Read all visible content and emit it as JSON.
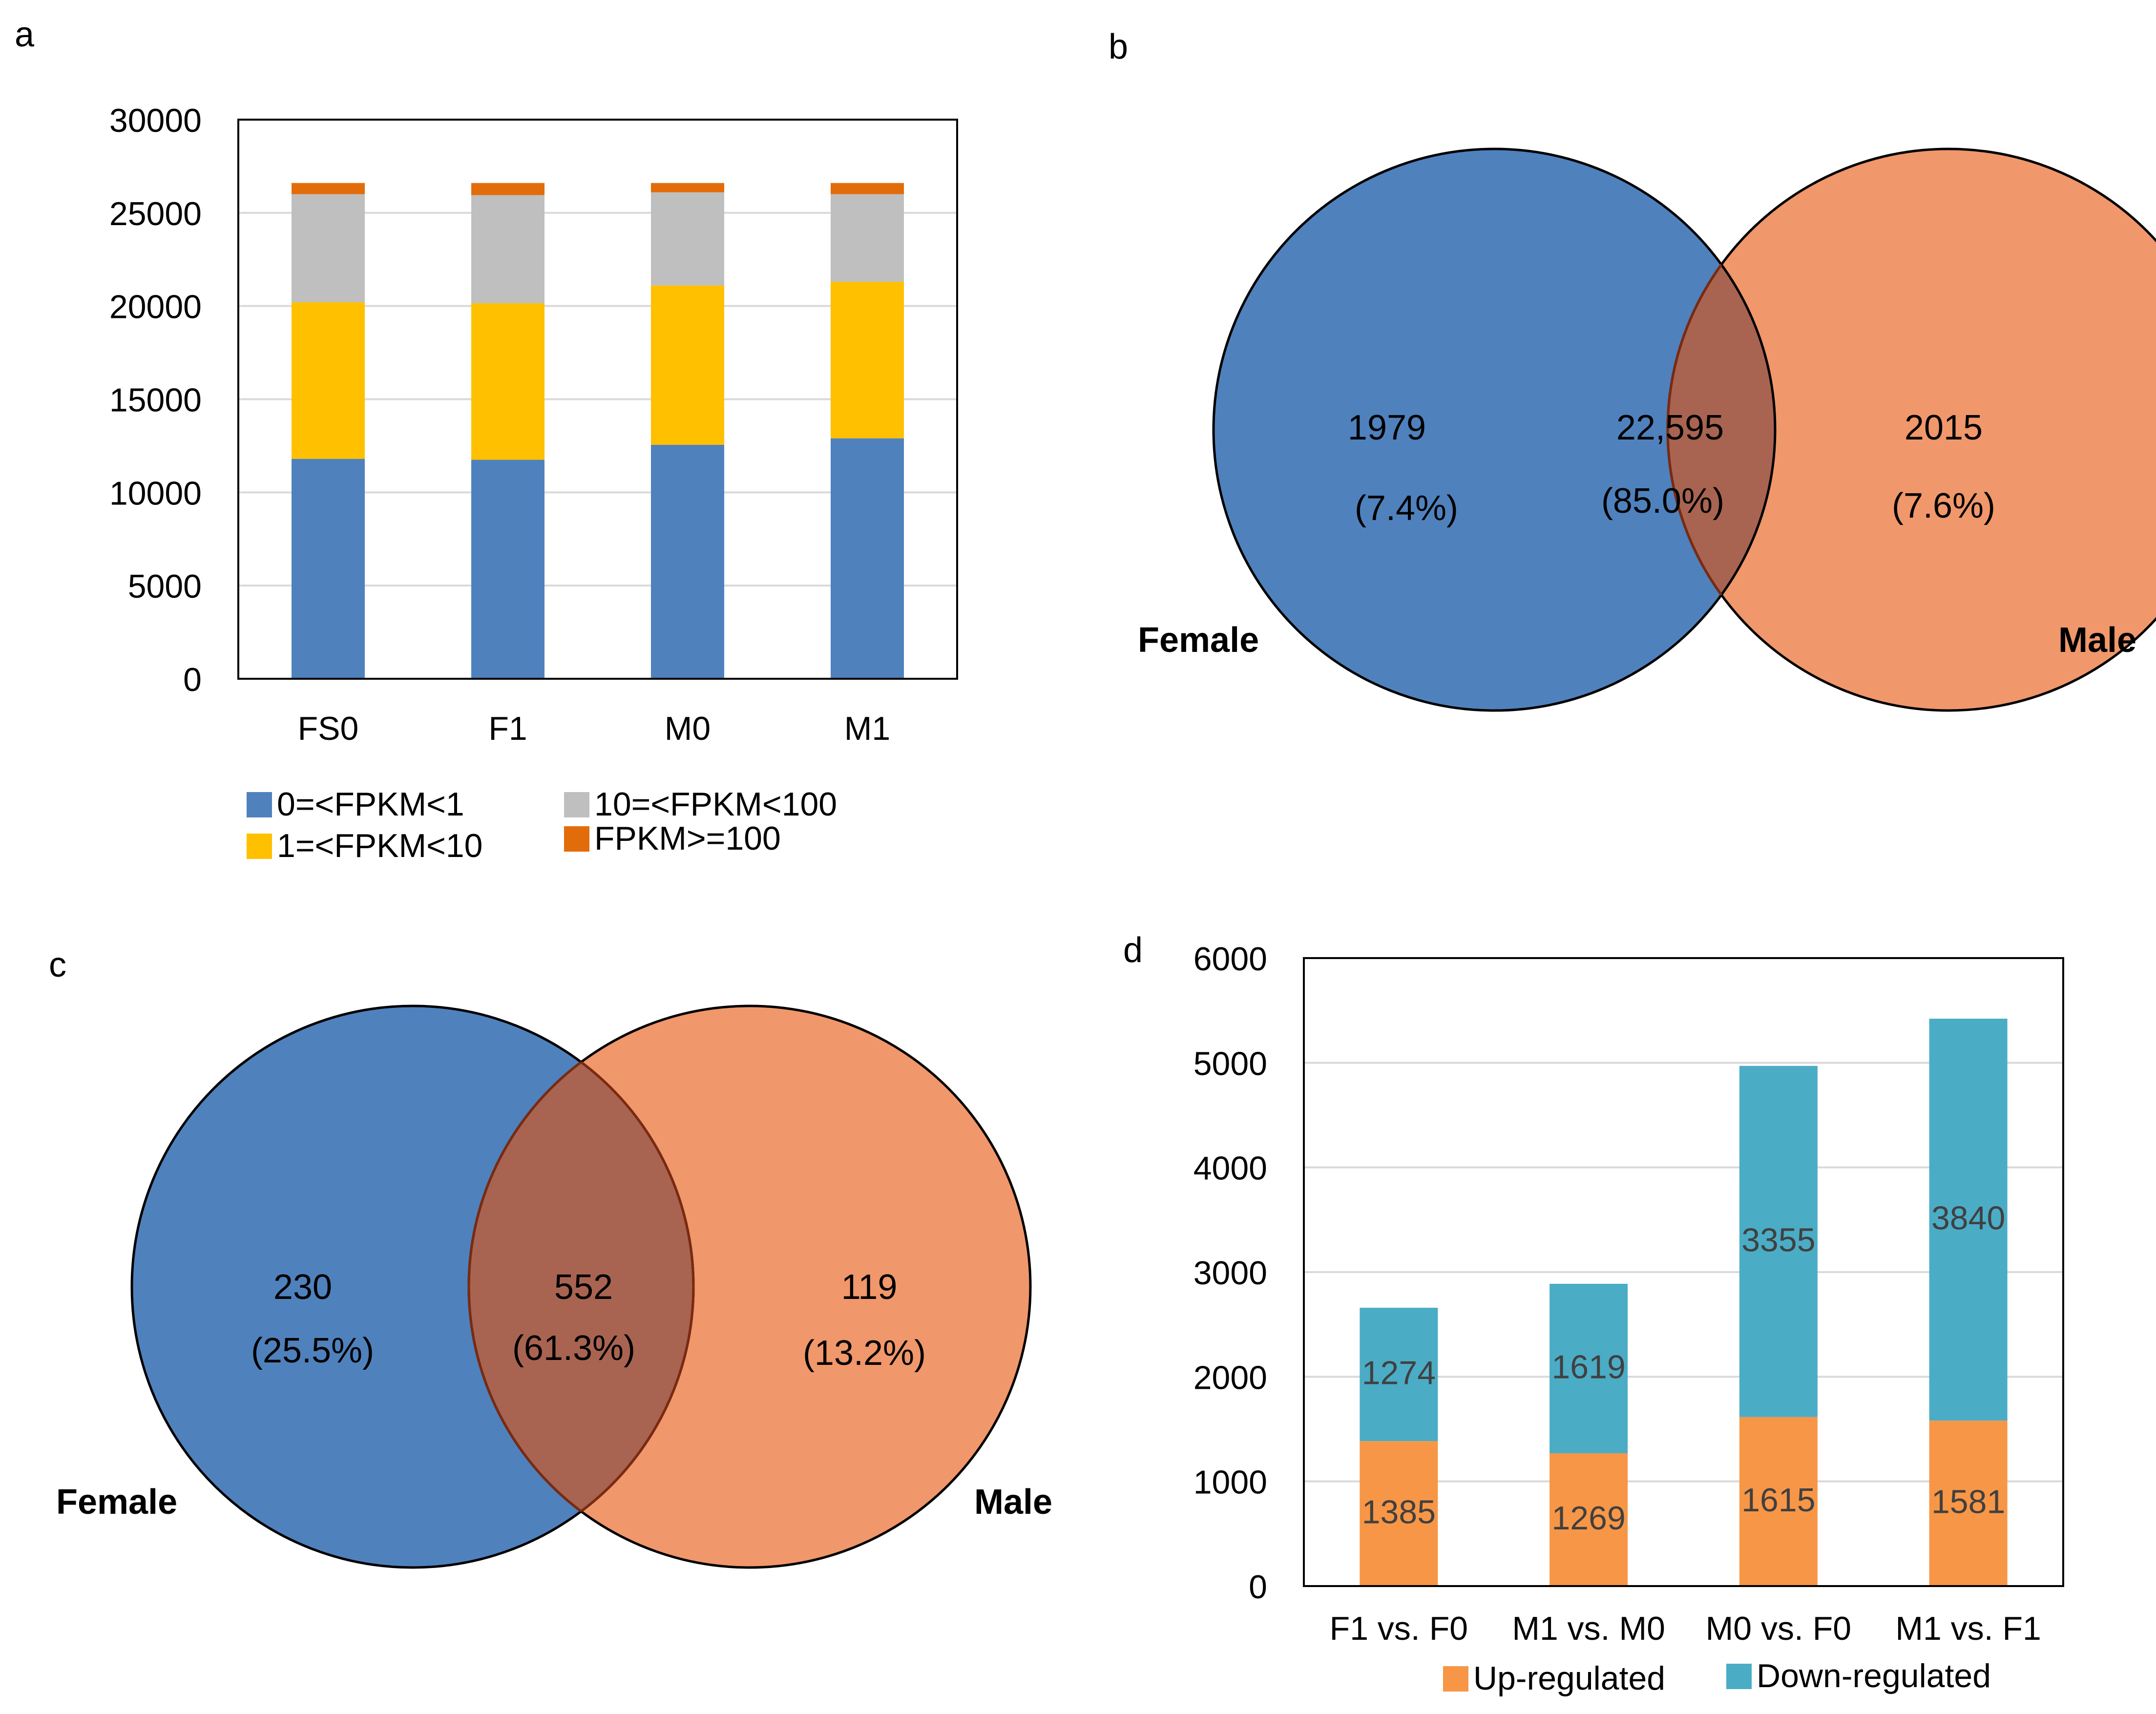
{
  "colors": {
    "blue": "#4f81bd",
    "yellow": "#ffc000",
    "gray": "#bfbfbf",
    "orange_dark": "#e36c0a",
    "venn_female": "#4f81bd",
    "venn_male": "#f0976b",
    "venn_overlap": "#a86451",
    "venn_overlap_stroke": "#7a2a10",
    "up": "#f79646",
    "down": "#4bacc6",
    "grid": "#d9d9d9",
    "label_on_bar": "#404040"
  },
  "panels": {
    "a": {
      "letter": "a"
    },
    "b": {
      "letter": "b"
    },
    "c": {
      "letter": "c"
    },
    "d": {
      "letter": "d"
    }
  },
  "chart_data": [
    {
      "panel": "a",
      "type": "bar",
      "stacked": true,
      "categories": [
        "FS0",
        "F1",
        "M0",
        "M1"
      ],
      "series": [
        {
          "name": "0=<FPKM<1",
          "color": "#4f81bd",
          "values": [
            11800,
            11750,
            12550,
            12900
          ]
        },
        {
          "name": "1=<FPKM<10",
          "color": "#ffc000",
          "values": [
            8400,
            8400,
            8550,
            8400
          ]
        },
        {
          "name": "10=<FPKM<100",
          "color": "#bfbfbf",
          "values": [
            5800,
            5800,
            5000,
            4700
          ]
        },
        {
          "name": "FPKM>=100",
          "color": "#e36c0a",
          "values": [
            600,
            650,
            500,
            600
          ]
        }
      ],
      "yticks": [
        "0",
        "5000",
        "10000",
        "15000",
        "20000",
        "25000",
        "30000"
      ],
      "ylim": [
        0,
        30000
      ],
      "legend_position": "bottom",
      "gridlines": true,
      "title": "",
      "xlabel": "",
      "ylabel": ""
    },
    {
      "panel": "d",
      "type": "bar",
      "stacked": true,
      "categories": [
        "F1 vs. F0",
        "M1 vs. M0",
        "M0 vs. F0",
        "M1 vs. F1"
      ],
      "series": [
        {
          "name": "Up-regulated",
          "color": "#f79646",
          "values": [
            1385,
            1269,
            1615,
            1581
          ],
          "labels": [
            "1385",
            "1269",
            "1615",
            "1581"
          ]
        },
        {
          "name": "Down-regulated",
          "color": "#4bacc6",
          "values": [
            1274,
            1619,
            3355,
            3840
          ],
          "labels": [
            "1274",
            "1619",
            "3355",
            "3840"
          ]
        }
      ],
      "yticks": [
        "0",
        "1000",
        "2000",
        "3000",
        "4000",
        "5000",
        "6000"
      ],
      "ylim": [
        0,
        6000
      ],
      "legend_position": "bottom",
      "gridlines": true,
      "title": "",
      "xlabel": "",
      "ylabel": ""
    }
  ],
  "venn_b": {
    "left_name": "Female",
    "right_name": "Male",
    "left_value": "1979",
    "left_pct": "(7.4%)",
    "overlap_value": "22,595",
    "overlap_pct": "(85.0%)",
    "right_value": "2015",
    "right_pct": "(7.6%)"
  },
  "venn_c": {
    "left_name": "Female",
    "right_name": "Male",
    "left_value": "230",
    "left_pct": "(25.5%)",
    "overlap_value": "552",
    "overlap_pct": "(61.3%)",
    "right_value": "119",
    "right_pct": "(13.2%)"
  }
}
